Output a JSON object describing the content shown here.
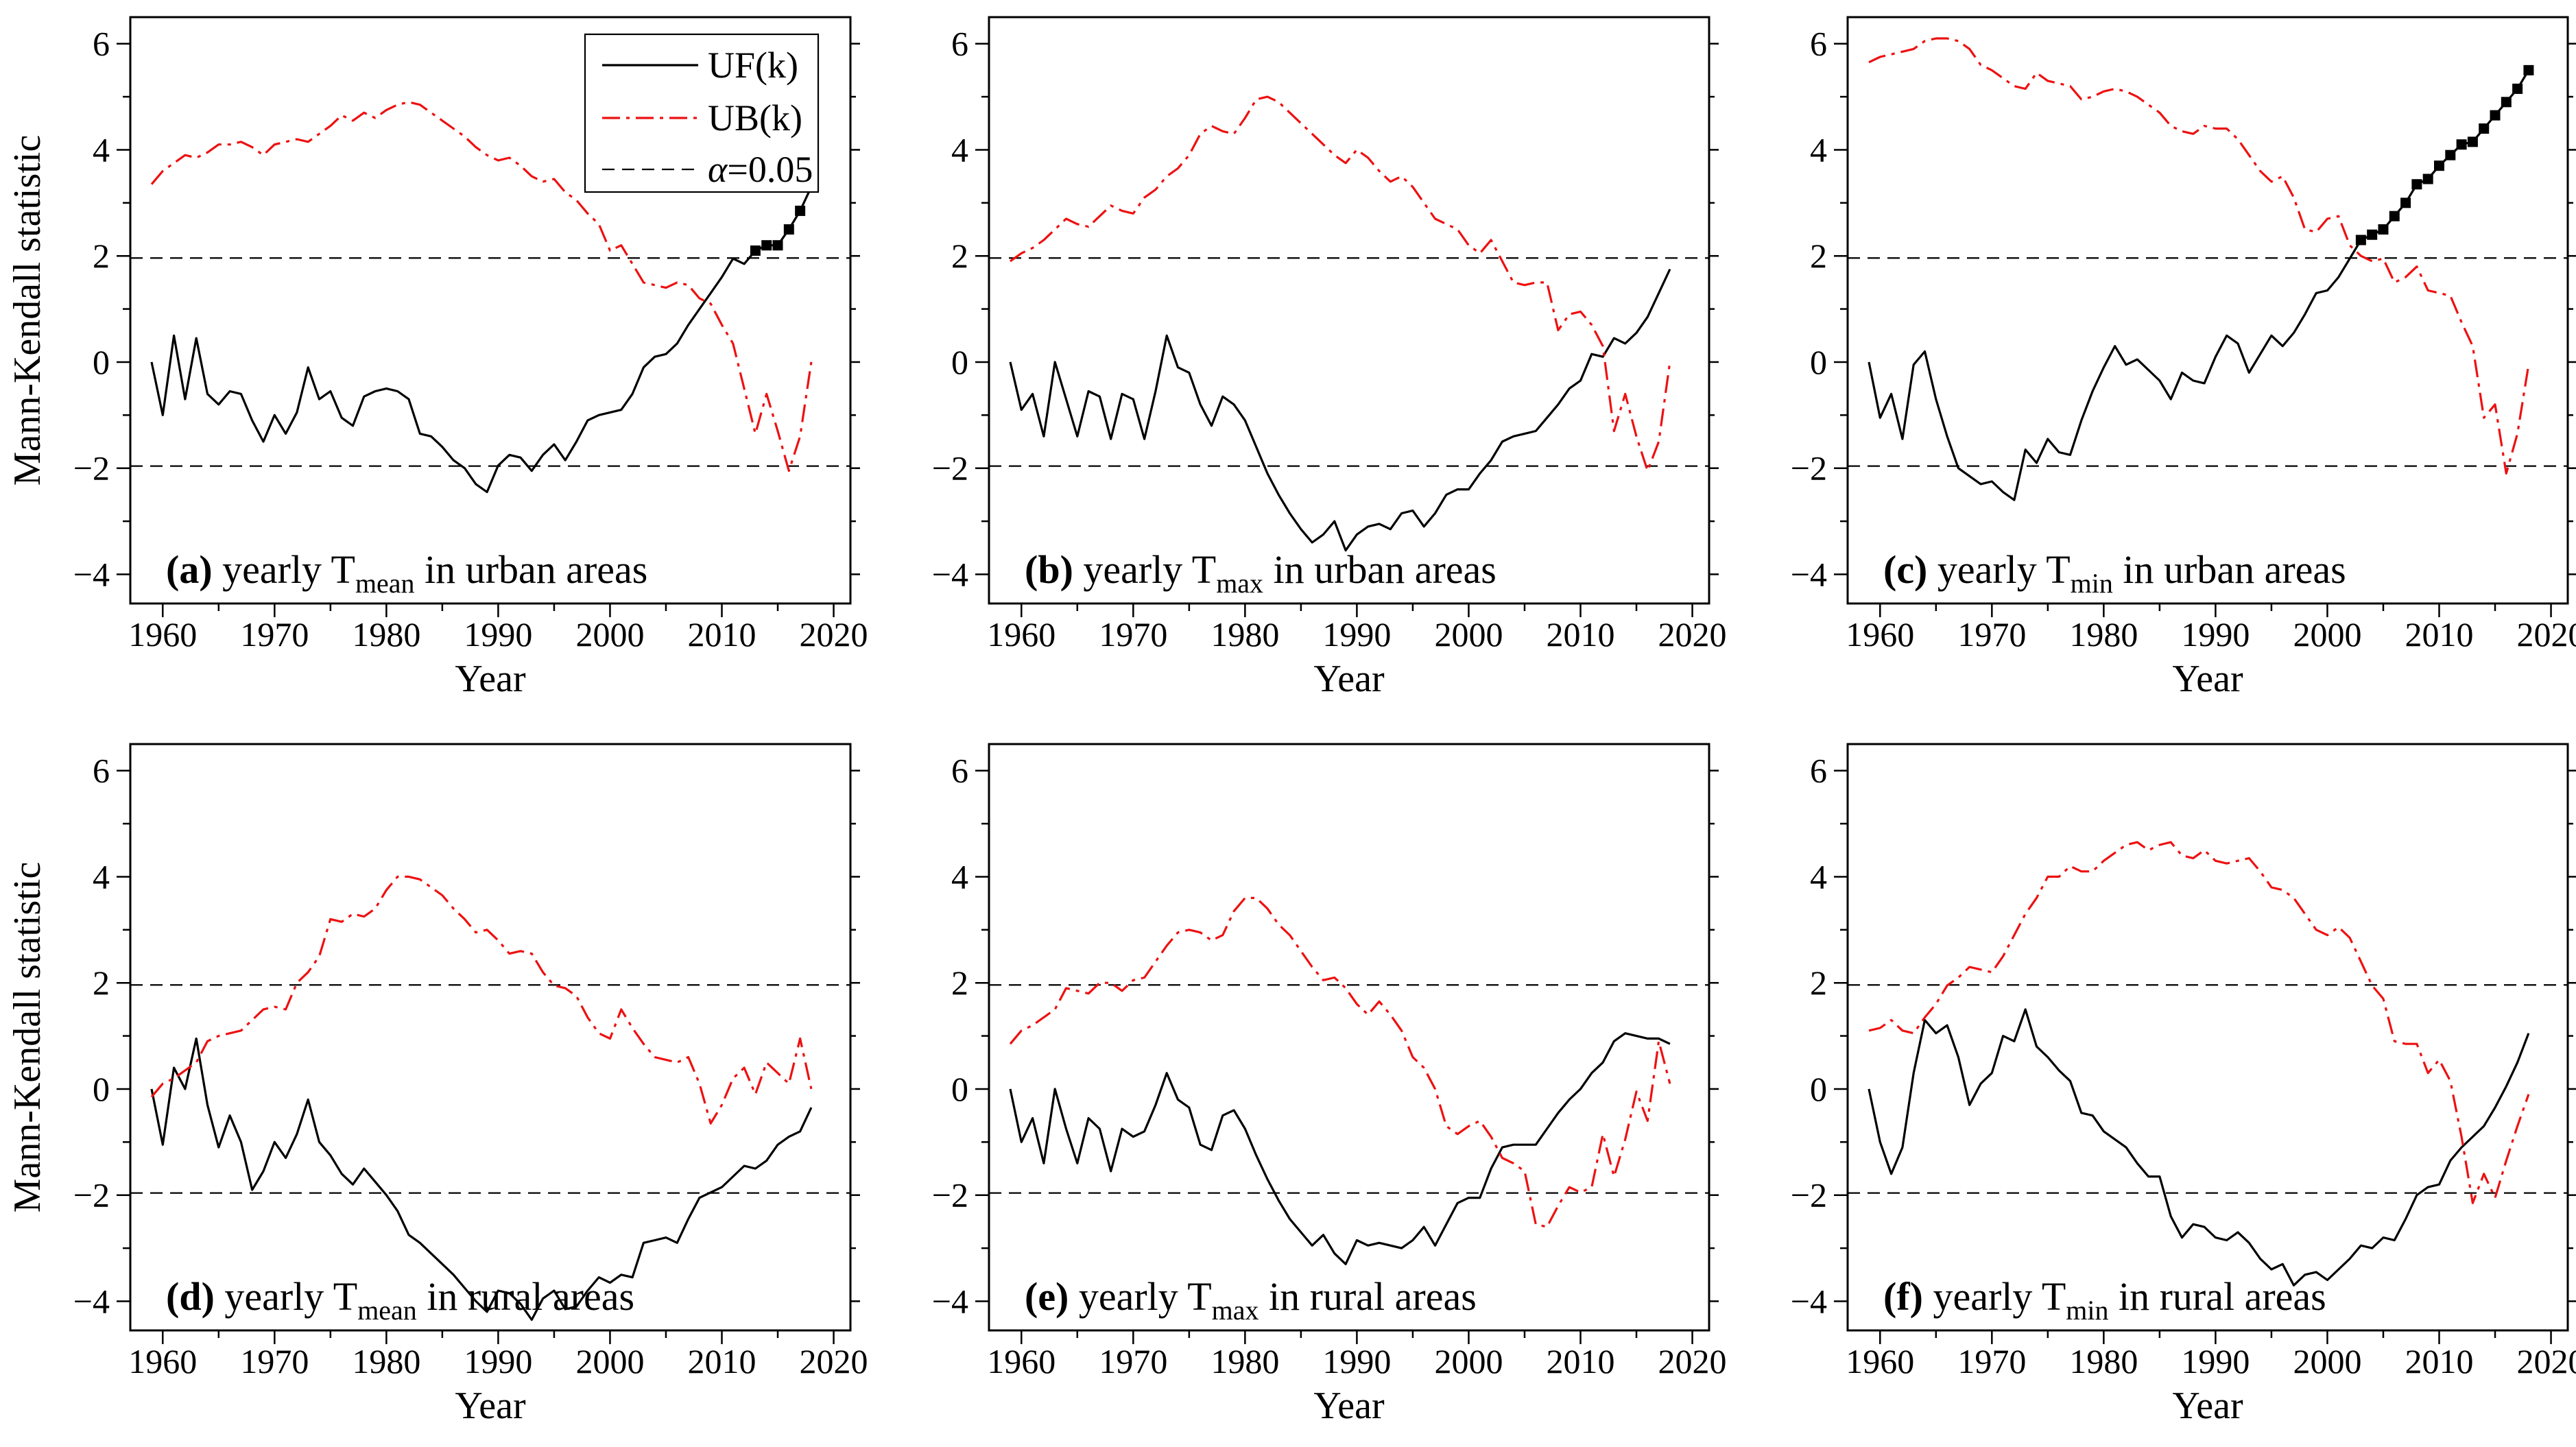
{
  "figure": {
    "ylabel": "Mann-Kendall statistic",
    "xlabel": "Year",
    "background": "#ffffff",
    "axis_color": "#000000",
    "uf_color": "#000000",
    "ub_color": "#ed1111",
    "legend": {
      "entries": [
        {
          "label": "UF(k)",
          "style": "solid",
          "color": "#000000"
        },
        {
          "label": "UB(k)",
          "style": "dashdot",
          "color": "#ed1111"
        },
        {
          "label_italic": "α",
          "label_rest": "=0.05",
          "style": "dash",
          "color": "#000000"
        }
      ],
      "position": "top-right-panel-a"
    },
    "xlim": [
      1957.1,
      2021.5
    ],
    "ylim": [
      -4.55,
      6.5
    ],
    "xticks": [
      1960,
      1970,
      1980,
      1990,
      2000,
      2010,
      2020
    ],
    "xticks_minor": [
      1965,
      1975,
      1985,
      1995,
      2005,
      2015
    ],
    "yticks": [
      -4,
      -2,
      0,
      2,
      4,
      6
    ],
    "yticks_minor": [
      -3,
      -1,
      1,
      3,
      5
    ],
    "significance_level": 1.96,
    "grid": false,
    "years_start": 1959,
    "years_end": 2018
  },
  "chart_data": [
    {
      "type": "line",
      "panel": "a",
      "region": "urban",
      "caption": {
        "label": "(a)",
        "pre": " yearly T",
        "sub": "mean",
        "post": " in urban areas"
      },
      "show_legend": true,
      "show_ylabel": true,
      "marker_start_year": 2013,
      "series": [
        {
          "name": "UF(k)",
          "values": [
            0,
            -1,
            0.5,
            -0.7,
            0.45,
            -0.6,
            -0.8,
            -0.55,
            -0.6,
            -1.1,
            -1.5,
            -1,
            -1.35,
            -0.95,
            -0.1,
            -0.7,
            -0.55,
            -1.05,
            -1.2,
            -0.65,
            -0.55,
            -0.5,
            -0.55,
            -0.7,
            -1.35,
            -1.4,
            -1.6,
            -1.85,
            -2,
            -2.3,
            -2.45,
            -1.95,
            -1.75,
            -1.8,
            -2.05,
            -1.75,
            -1.55,
            -1.85,
            -1.5,
            -1.1,
            -1,
            -0.95,
            -0.9,
            -0.6,
            -0.1,
            0.1,
            0.15,
            0.35,
            0.7,
            1,
            1.3,
            1.6,
            1.95,
            1.85,
            2.1,
            2.2,
            2.2,
            2.5,
            2.85,
            3.3
          ]
        },
        {
          "name": "UB(k)",
          "values": [
            3.35,
            3.6,
            3.75,
            3.9,
            3.85,
            3.95,
            4.1,
            4.1,
            4.15,
            4.05,
            3.9,
            4.1,
            4.15,
            4.2,
            4.15,
            4.3,
            4.45,
            4.65,
            4.55,
            4.7,
            4.6,
            4.75,
            4.85,
            4.9,
            4.85,
            4.7,
            4.55,
            4.4,
            4.25,
            4.05,
            3.9,
            3.8,
            3.85,
            3.7,
            3.5,
            3.4,
            3.45,
            3.2,
            3.05,
            2.8,
            2.6,
            2.1,
            2.2,
            1.85,
            1.5,
            1.45,
            1.4,
            1.5,
            1.45,
            1.2,
            1.1,
            0.7,
            0.35,
            -0.5,
            -1.35,
            -0.6,
            -1.3,
            -2.05,
            -1.4,
            0
          ]
        }
      ]
    },
    {
      "type": "line",
      "panel": "b",
      "region": "urban",
      "caption": {
        "label": "(b)",
        "pre": " yearly T",
        "sub": "max",
        "post": " in urban areas"
      },
      "show_legend": false,
      "show_ylabel": false,
      "marker_start_year": null,
      "series": [
        {
          "name": "UF(k)",
          "values": [
            0,
            -0.9,
            -0.6,
            -1.4,
            0,
            -0.7,
            -1.4,
            -0.55,
            -0.65,
            -1.45,
            -0.6,
            -0.7,
            -1.45,
            -0.55,
            0.5,
            -0.1,
            -0.2,
            -0.8,
            -1.2,
            -0.65,
            -0.8,
            -1.1,
            -1.6,
            -2.1,
            -2.5,
            -2.85,
            -3.15,
            -3.4,
            -3.25,
            -3,
            -3.55,
            -3.25,
            -3.1,
            -3.05,
            -3.15,
            -2.85,
            -2.8,
            -3.1,
            -2.85,
            -2.5,
            -2.4,
            -2.4,
            -2.1,
            -1.85,
            -1.5,
            -1.4,
            -1.35,
            -1.3,
            -1.05,
            -0.8,
            -0.5,
            -0.35,
            0.15,
            0.1,
            0.45,
            0.35,
            0.55,
            0.85,
            1.3,
            1.75
          ]
        },
        {
          "name": "UB(k)",
          "values": [
            1.9,
            2.05,
            2.15,
            2.3,
            2.5,
            2.7,
            2.6,
            2.55,
            2.75,
            2.95,
            2.85,
            2.8,
            3.1,
            3.25,
            3.5,
            3.65,
            3.9,
            4.3,
            4.45,
            4.35,
            4.3,
            4.6,
            4.95,
            5,
            4.9,
            4.7,
            4.5,
            4.3,
            4.1,
            3.9,
            3.75,
            4,
            3.85,
            3.6,
            3.4,
            3.5,
            3.3,
            3,
            2.7,
            2.6,
            2.5,
            2.2,
            2.05,
            2.3,
            1.9,
            1.5,
            1.45,
            1.5,
            1.5,
            0.6,
            0.9,
            0.95,
            0.7,
            0.3,
            -1.3,
            -0.6,
            -1.4,
            -2.05,
            -1.5,
            0
          ]
        }
      ]
    },
    {
      "type": "line",
      "panel": "c",
      "region": "urban",
      "caption": {
        "label": "(c)",
        "pre": " yearly T",
        "sub": "min",
        "post": " in urban areas"
      },
      "show_legend": false,
      "show_ylabel": false,
      "marker_start_year": 2003,
      "series": [
        {
          "name": "UF(k)",
          "values": [
            0,
            -1.05,
            -0.6,
            -1.45,
            -0.05,
            0.2,
            -0.7,
            -1.4,
            -2,
            -2.15,
            -2.3,
            -2.25,
            -2.45,
            -2.6,
            -1.65,
            -1.9,
            -1.45,
            -1.7,
            -1.75,
            -1.1,
            -0.55,
            -0.1,
            0.3,
            -0.05,
            0.05,
            -0.15,
            -0.35,
            -0.7,
            -0.2,
            -0.35,
            -0.4,
            0.1,
            0.5,
            0.35,
            -0.2,
            0.15,
            0.5,
            0.3,
            0.55,
            0.9,
            1.3,
            1.35,
            1.6,
            1.95,
            2.3,
            2.4,
            2.5,
            2.75,
            3,
            3.35,
            3.45,
            3.7,
            3.9,
            4.1,
            4.15,
            4.4,
            4.65,
            4.9,
            5.15,
            5.5
          ]
        },
        {
          "name": "UB(k)",
          "values": [
            5.65,
            5.75,
            5.8,
            5.85,
            5.9,
            6.05,
            6.1,
            6.1,
            6.05,
            5.9,
            5.6,
            5.5,
            5.35,
            5.2,
            5.15,
            5.45,
            5.3,
            5.25,
            5.2,
            4.95,
            5,
            5.1,
            5.15,
            5.1,
            5,
            4.85,
            4.7,
            4.45,
            4.35,
            4.3,
            4.45,
            4.4,
            4.4,
            4.2,
            3.9,
            3.6,
            3.4,
            3.5,
            3.1,
            2.5,
            2.45,
            2.7,
            2.75,
            2.2,
            2,
            1.9,
            1.95,
            1.5,
            1.6,
            1.8,
            1.35,
            1.3,
            1.25,
            0.75,
            0.3,
            -1.05,
            -0.8,
            -2.1,
            -1.35,
            -0.05
          ]
        }
      ]
    },
    {
      "type": "line",
      "panel": "d",
      "region": "rural",
      "caption": {
        "label": "(d)",
        "pre": " yearly T",
        "sub": "mean",
        "post": " in rural areas"
      },
      "show_legend": false,
      "show_ylabel": true,
      "marker_start_year": null,
      "series": [
        {
          "name": "UF(k)",
          "values": [
            0,
            -1.05,
            0.4,
            0,
            0.95,
            -0.3,
            -1.1,
            -0.5,
            -1,
            -1.9,
            -1.55,
            -1,
            -1.3,
            -0.85,
            -0.2,
            -1,
            -1.25,
            -1.6,
            -1.8,
            -1.5,
            -1.75,
            -2,
            -2.3,
            -2.75,
            -2.9,
            -3.1,
            -3.3,
            -3.5,
            -3.75,
            -4,
            -4.2,
            -3.8,
            -3.85,
            -4.05,
            -4.35,
            -3.95,
            -3.8,
            -4.15,
            -4.1,
            -3.8,
            -3.55,
            -3.65,
            -3.5,
            -3.55,
            -2.9,
            -2.85,
            -2.8,
            -2.9,
            -2.45,
            -2.05,
            -1.95,
            -1.85,
            -1.65,
            -1.45,
            -1.5,
            -1.35,
            -1.05,
            -0.9,
            -0.8,
            -0.35
          ]
        },
        {
          "name": "UB(k)",
          "values": [
            -0.15,
            0.1,
            0.2,
            0.35,
            0.5,
            0.9,
            1,
            1.05,
            1.1,
            1.3,
            1.5,
            1.55,
            1.5,
            2,
            2.2,
            2.5,
            3.2,
            3.15,
            3.3,
            3.25,
            3.4,
            3.75,
            4,
            4,
            3.95,
            3.8,
            3.65,
            3.4,
            3.2,
            2.95,
            3,
            2.8,
            2.55,
            2.6,
            2.55,
            2.2,
            1.95,
            1.9,
            1.75,
            1.35,
            1.05,
            0.95,
            1.5,
            1.15,
            0.85,
            0.6,
            0.55,
            0.5,
            0.6,
            0.1,
            -0.65,
            -0.3,
            0.2,
            0.4,
            -0.1,
            0.5,
            0.3,
            0.1,
            0.95,
            0
          ]
        }
      ]
    },
    {
      "type": "line",
      "panel": "e",
      "region": "rural",
      "caption": {
        "label": "(e)",
        "pre": " yearly T",
        "sub": "max",
        "post": " in rural areas"
      },
      "show_legend": false,
      "show_ylabel": false,
      "marker_start_year": null,
      "series": [
        {
          "name": "UF(k)",
          "values": [
            0,
            -1,
            -0.55,
            -1.4,
            0,
            -0.75,
            -1.4,
            -0.55,
            -0.75,
            -1.55,
            -0.75,
            -0.9,
            -0.8,
            -0.3,
            0.3,
            -0.2,
            -0.35,
            -1.05,
            -1.15,
            -0.5,
            -0.4,
            -0.75,
            -1.25,
            -1.7,
            -2.1,
            -2.45,
            -2.7,
            -2.95,
            -2.75,
            -3.1,
            -3.3,
            -2.85,
            -2.95,
            -2.9,
            -2.95,
            -3,
            -2.85,
            -2.6,
            -2.95,
            -2.55,
            -2.15,
            -2.05,
            -2.05,
            -1.5,
            -1.1,
            -1.05,
            -1.05,
            -1.05,
            -0.75,
            -0.45,
            -0.2,
            0,
            0.3,
            0.5,
            0.9,
            1.05,
            1,
            0.95,
            0.95,
            0.85
          ]
        },
        {
          "name": "UB(k)",
          "values": [
            0.85,
            1.1,
            1.2,
            1.35,
            1.5,
            1.9,
            1.85,
            1.8,
            2,
            2,
            1.85,
            2.05,
            2.1,
            2.4,
            2.7,
            2.95,
            3,
            2.95,
            2.8,
            2.9,
            3.35,
            3.6,
            3.6,
            3.4,
            3.1,
            2.9,
            2.6,
            2.3,
            2.05,
            2.1,
            1.9,
            1.6,
            1.4,
            1.65,
            1.4,
            1.1,
            0.6,
            0.4,
            0,
            -0.7,
            -0.85,
            -0.7,
            -0.6,
            -0.9,
            -1.3,
            -1.4,
            -1.55,
            -2.55,
            -2.6,
            -2.2,
            -1.85,
            -1.95,
            -1.85,
            -0.85,
            -1.65,
            -0.95,
            -0.05,
            -0.6,
            0.9,
            0.1
          ]
        }
      ]
    },
    {
      "type": "line",
      "panel": "f",
      "region": "rural",
      "caption": {
        "label": "(f)",
        "pre": " yearly T",
        "sub": "min",
        "post": " in rural areas"
      },
      "show_legend": false,
      "show_ylabel": false,
      "marker_start_year": null,
      "series": [
        {
          "name": "UF(k)",
          "values": [
            0,
            -1,
            -1.6,
            -1.1,
            0.3,
            1.3,
            1.05,
            1.2,
            0.6,
            -0.3,
            0.1,
            0.3,
            1,
            0.9,
            1.5,
            0.8,
            0.6,
            0.35,
            0.15,
            -0.45,
            -0.5,
            -0.8,
            -0.95,
            -1.1,
            -1.4,
            -1.65,
            -1.65,
            -2.4,
            -2.8,
            -2.55,
            -2.6,
            -2.8,
            -2.85,
            -2.7,
            -2.9,
            -3.2,
            -3.4,
            -3.3,
            -3.7,
            -3.5,
            -3.45,
            -3.6,
            -3.4,
            -3.2,
            -2.95,
            -3,
            -2.8,
            -2.85,
            -2.45,
            -2,
            -1.85,
            -1.8,
            -1.35,
            -1.1,
            -0.9,
            -0.7,
            -0.35,
            0.05,
            0.5,
            1.05
          ]
        },
        {
          "name": "UB(k)",
          "values": [
            1.1,
            1.15,
            1.3,
            1.1,
            1.05,
            1.35,
            1.6,
            1.95,
            2.1,
            2.3,
            2.25,
            2.2,
            2.5,
            2.9,
            3.3,
            3.6,
            4,
            4,
            4.2,
            4.1,
            4.1,
            4.3,
            4.45,
            4.6,
            4.65,
            4.5,
            4.6,
            4.65,
            4.4,
            4.35,
            4.5,
            4.3,
            4.25,
            4.3,
            4.35,
            4.1,
            3.8,
            3.75,
            3.6,
            3.3,
            3,
            2.9,
            3.05,
            2.85,
            2.4,
            1.95,
            1.7,
            0.9,
            0.85,
            0.85,
            0.3,
            0.55,
            0.15,
            -0.9,
            -2.15,
            -1.6,
            -2.05,
            -1.35,
            -0.7,
            -0.1
          ]
        }
      ]
    }
  ]
}
